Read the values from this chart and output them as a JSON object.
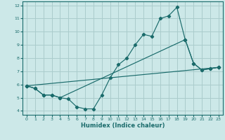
{
  "title": "",
  "xlabel": "Humidex (Indice chaleur)",
  "ylabel": "",
  "bg_color": "#cce8e8",
  "grid_color": "#aacccc",
  "line_color": "#1a6b6b",
  "xlim": [
    -0.5,
    23.5
  ],
  "ylim": [
    3.7,
    12.3
  ],
  "xticks": [
    0,
    1,
    2,
    3,
    4,
    5,
    6,
    7,
    8,
    9,
    10,
    11,
    12,
    13,
    14,
    15,
    16,
    17,
    18,
    19,
    20,
    21,
    22,
    23
  ],
  "yticks": [
    4,
    5,
    6,
    7,
    8,
    9,
    10,
    11,
    12
  ],
  "line1_x": [
    0,
    1,
    2,
    3,
    4,
    5,
    6,
    7,
    8,
    9,
    10,
    11,
    12,
    13,
    14,
    15,
    16,
    17,
    18,
    19,
    20,
    21,
    22,
    23
  ],
  "line1_y": [
    5.9,
    5.7,
    5.2,
    5.2,
    5.0,
    4.9,
    4.3,
    4.15,
    4.15,
    5.2,
    6.5,
    7.5,
    8.0,
    9.0,
    9.8,
    9.65,
    11.0,
    11.2,
    11.85,
    9.4,
    7.6,
    7.1,
    7.2,
    7.3
  ],
  "line2_x": [
    0,
    1,
    2,
    3,
    4,
    19,
    20,
    21,
    22,
    23
  ],
  "line2_y": [
    5.9,
    5.7,
    5.2,
    5.2,
    5.0,
    9.4,
    7.6,
    7.1,
    7.2,
    7.3
  ],
  "line3_x": [
    0,
    23
  ],
  "line3_y": [
    5.9,
    7.3
  ]
}
